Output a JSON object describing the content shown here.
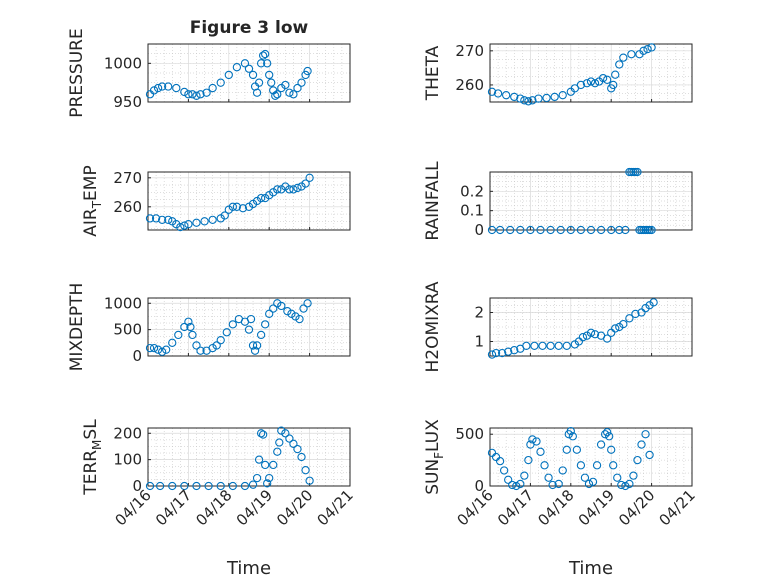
{
  "chart_data": [
    {
      "type": "scatter",
      "panel": "pressure",
      "title": "Figure 3 low",
      "ylabel": "PRESSURE",
      "ylabel_sub": "",
      "ylim": [
        950,
        1025
      ],
      "yticks": [
        950,
        1000
      ],
      "grid": true,
      "x_axis": "date",
      "xlim": [
        "04/16",
        "04/21"
      ],
      "x": [
        0.05,
        0.15,
        0.25,
        0.35,
        0.5,
        0.7,
        0.9,
        1.0,
        1.1,
        1.2,
        1.3,
        1.45,
        1.6,
        1.8,
        2.0,
        2.2,
        2.4,
        2.5,
        2.6,
        2.65,
        2.7,
        2.75,
        2.8,
        2.85,
        2.9,
        2.95,
        3.0,
        3.05,
        3.1,
        3.15,
        3.2,
        3.3,
        3.4,
        3.5,
        3.6,
        3.7,
        3.8,
        3.9,
        3.95
      ],
      "y": [
        960,
        965,
        968,
        970,
        970,
        968,
        963,
        960,
        960,
        958,
        960,
        962,
        968,
        975,
        985,
        995,
        1000,
        993,
        985,
        970,
        962,
        975,
        1000,
        1010,
        1012,
        1000,
        985,
        975,
        965,
        958,
        960,
        968,
        972,
        962,
        960,
        968,
        975,
        985,
        990
      ]
    },
    {
      "type": "scatter",
      "panel": "theta",
      "title": "",
      "ylabel": "THETA",
      "ylabel_sub": "",
      "ylim": [
        255,
        272
      ],
      "yticks": [
        260,
        270
      ],
      "grid": true,
      "x_axis": "date",
      "xlim": [
        "04/16",
        "04/21"
      ],
      "x": [
        0.05,
        0.2,
        0.4,
        0.6,
        0.75,
        0.85,
        0.95,
        1.05,
        1.2,
        1.4,
        1.6,
        1.8,
        2.0,
        2.1,
        2.25,
        2.4,
        2.5,
        2.6,
        2.7,
        2.8,
        2.9,
        3.0,
        3.05,
        3.1,
        3.2,
        3.3,
        3.5,
        3.7,
        3.8,
        3.9,
        4.0
      ],
      "y": [
        258,
        257.5,
        257,
        256.5,
        256,
        255.5,
        255.2,
        255.5,
        256,
        256.2,
        256.5,
        257,
        258,
        259,
        260,
        260.5,
        261,
        260.5,
        261,
        262,
        261.5,
        259,
        260,
        263,
        266,
        268,
        269,
        269,
        270,
        270.5,
        271
      ]
    },
    {
      "type": "scatter",
      "panel": "air_temp",
      "title": "",
      "ylabel": "AIR",
      "ylabel_sub": "T",
      "ylabel_tail": "EMP",
      "ylim": [
        252,
        272
      ],
      "yticks": [
        260,
        270
      ],
      "grid": true,
      "x_axis": "date",
      "xlim": [
        "04/16",
        "04/21"
      ],
      "x": [
        0.05,
        0.2,
        0.35,
        0.5,
        0.6,
        0.7,
        0.8,
        0.9,
        1.0,
        1.2,
        1.4,
        1.6,
        1.8,
        1.9,
        2.0,
        2.1,
        2.2,
        2.35,
        2.5,
        2.6,
        2.7,
        2.8,
        2.9,
        3.0,
        3.1,
        3.2,
        3.3,
        3.4,
        3.5,
        3.6,
        3.7,
        3.8,
        3.9,
        4.0
      ],
      "y": [
        256,
        256,
        255.5,
        255.5,
        255,
        254,
        253,
        253.5,
        254,
        254.5,
        255,
        255.5,
        256,
        257,
        259,
        260,
        260,
        259.5,
        260,
        261,
        262,
        263,
        263,
        264,
        265,
        266,
        266,
        267,
        266,
        266,
        266.5,
        267,
        268,
        270
      ]
    },
    {
      "type": "scatter",
      "panel": "rainfall",
      "title": "",
      "ylabel": "RAINFALL",
      "ylabel_sub": "",
      "ylim": [
        0,
        0.3
      ],
      "yticks": [
        0,
        0.1,
        0.2
      ],
      "grid": true,
      "x_axis": "date",
      "xlim": [
        "04/16",
        "04/21"
      ],
      "x": [
        0.05,
        0.25,
        0.5,
        0.75,
        1.0,
        1.25,
        1.5,
        1.75,
        2.0,
        2.25,
        2.5,
        2.75,
        3.0,
        3.2,
        3.35,
        3.45,
        3.5,
        3.55,
        3.6,
        3.65,
        3.7,
        3.75,
        3.8,
        3.85,
        3.9,
        3.95,
        4.0
      ],
      "y": [
        0,
        0,
        0,
        0,
        0,
        0,
        0,
        0,
        0,
        0,
        0,
        0,
        0,
        0,
        0,
        0.3,
        0.3,
        0.3,
        0.3,
        0.3,
        0,
        0,
        0,
        0,
        0,
        0,
        0
      ]
    },
    {
      "type": "scatter",
      "panel": "mixdepth",
      "title": "",
      "ylabel": "MIXDEPTH",
      "ylabel_sub": "",
      "ylim": [
        0,
        1100
      ],
      "yticks": [
        0,
        500,
        1000
      ],
      "grid": true,
      "x_axis": "date",
      "xlim": [
        "04/16",
        "04/21"
      ],
      "x": [
        0.05,
        0.15,
        0.25,
        0.35,
        0.45,
        0.6,
        0.75,
        0.9,
        1.0,
        1.05,
        1.1,
        1.2,
        1.3,
        1.45,
        1.6,
        1.7,
        1.8,
        1.95,
        2.1,
        2.25,
        2.4,
        2.5,
        2.55,
        2.6,
        2.65,
        2.7,
        2.8,
        2.9,
        3.0,
        3.1,
        3.2,
        3.3,
        3.45,
        3.55,
        3.65,
        3.75,
        3.85,
        3.95
      ],
      "y": [
        150,
        150,
        120,
        80,
        120,
        250,
        400,
        550,
        650,
        550,
        400,
        200,
        100,
        100,
        150,
        200,
        300,
        450,
        600,
        700,
        650,
        500,
        700,
        200,
        100,
        200,
        400,
        600,
        800,
        900,
        1000,
        950,
        850,
        800,
        750,
        700,
        900,
        1000
      ]
    },
    {
      "type": "scatter",
      "panel": "h2omixra",
      "title": "",
      "ylabel": "H2OMIXRA",
      "ylabel_sub": "",
      "ylim": [
        0.5,
        2.5
      ],
      "yticks": [
        1,
        2
      ],
      "grid": true,
      "x_axis": "date",
      "xlim": [
        "04/16",
        "04/21"
      ],
      "x": [
        0.05,
        0.15,
        0.3,
        0.45,
        0.6,
        0.75,
        0.9,
        1.1,
        1.3,
        1.5,
        1.7,
        1.9,
        2.1,
        2.2,
        2.3,
        2.4,
        2.5,
        2.6,
        2.75,
        2.9,
        3.0,
        3.1,
        3.2,
        3.3,
        3.45,
        3.6,
        3.75,
        3.85,
        3.95,
        4.05
      ],
      "y": [
        0.55,
        0.6,
        0.6,
        0.65,
        0.7,
        0.75,
        0.85,
        0.85,
        0.85,
        0.85,
        0.85,
        0.85,
        0.9,
        1.0,
        1.15,
        1.2,
        1.3,
        1.25,
        1.2,
        1.1,
        1.3,
        1.45,
        1.5,
        1.6,
        1.8,
        1.95,
        2.0,
        2.15,
        2.25,
        2.35
      ]
    },
    {
      "type": "scatter",
      "panel": "terr_msl",
      "title": "",
      "ylabel": "TERR",
      "ylabel_sub": "M",
      "ylabel_tail": "SL",
      "ylim": [
        0,
        220
      ],
      "yticks": [
        0,
        100,
        200
      ],
      "grid": true,
      "x_axis": "date",
      "xlim": [
        "04/16",
        "04/21"
      ],
      "x": [
        0.05,
        0.3,
        0.6,
        0.9,
        1.2,
        1.5,
        1.8,
        2.1,
        2.4,
        2.6,
        2.7,
        2.75,
        2.8,
        2.85,
        2.9,
        2.95,
        3.0,
        3.1,
        3.2,
        3.25,
        3.3,
        3.4,
        3.5,
        3.6,
        3.7,
        3.8,
        3.9,
        4.0
      ],
      "y": [
        0,
        0,
        0,
        0,
        0,
        0,
        0,
        0,
        0,
        5,
        30,
        100,
        200,
        195,
        80,
        10,
        30,
        80,
        130,
        165,
        210,
        200,
        180,
        160,
        140,
        110,
        60,
        20
      ]
    },
    {
      "type": "scatter",
      "panel": "sun_flux",
      "title": "",
      "ylabel": "SUN",
      "ylabel_sub": "F",
      "ylabel_tail": "LUX",
      "ylim": [
        0,
        560
      ],
      "yticks": [
        0,
        500
      ],
      "grid": true,
      "x_axis": "date",
      "xlim": [
        "04/16",
        "04/21"
      ],
      "x": [
        0.05,
        0.15,
        0.25,
        0.35,
        0.45,
        0.55,
        0.65,
        0.75,
        0.85,
        0.95,
        1.0,
        1.05,
        1.15,
        1.25,
        1.35,
        1.45,
        1.55,
        1.7,
        1.8,
        1.9,
        1.95,
        2.0,
        2.05,
        2.15,
        2.25,
        2.35,
        2.45,
        2.55,
        2.65,
        2.75,
        2.85,
        2.9,
        2.95,
        3.0,
        3.05,
        3.15,
        3.25,
        3.35,
        3.45,
        3.55,
        3.65,
        3.75,
        3.85,
        3.95
      ],
      "y": [
        320,
        280,
        240,
        150,
        60,
        10,
        0,
        20,
        100,
        250,
        400,
        450,
        430,
        330,
        200,
        80,
        10,
        20,
        150,
        350,
        500,
        530,
        480,
        350,
        200,
        80,
        20,
        40,
        200,
        400,
        500,
        520,
        480,
        350,
        200,
        80,
        10,
        0,
        20,
        100,
        250,
        400,
        500,
        300
      ]
    }
  ],
  "x_tick_labels": [
    "04/16",
    "04/17",
    "04/18",
    "04/19",
    "04/20",
    "04/21"
  ],
  "x_label": "Time"
}
